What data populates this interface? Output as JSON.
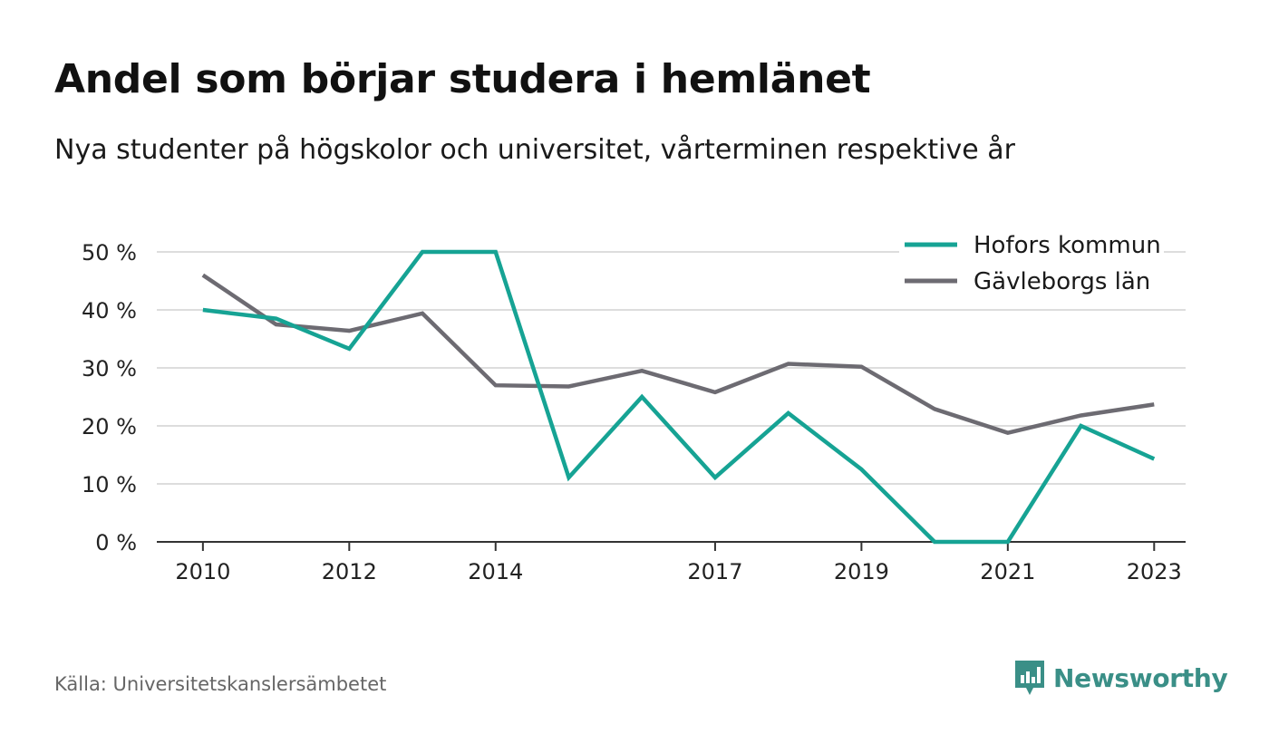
{
  "header": {
    "title": "Andel som börjar studera i hemlänet",
    "subtitle": "Nya studenter på högskolor och universitet, vårterminen respektive år"
  },
  "footer": {
    "source": "Källa: Universitetskanslersämbetet",
    "brand": "Newsworthy"
  },
  "colors": {
    "Hofors kommun": "#16a394",
    "Gävleborgs län": "#6d6b72",
    "grid": "#dddddd",
    "axis": "#333333",
    "brand": "#3a8f87"
  },
  "icons": {
    "brand_logo": "newsworthy-logo-icon"
  },
  "chart_data": {
    "type": "line",
    "title": "Andel som börjar studera i hemlänet",
    "subtitle": "Nya studenter på högskolor och universitet, vårterminen respektive år",
    "xlabel": "",
    "ylabel": "",
    "x": [
      2010,
      2011,
      2012,
      2013,
      2014,
      2015,
      2016,
      2017,
      2018,
      2019,
      2020,
      2021,
      2022,
      2023
    ],
    "x_tick_labels": [
      "2010",
      "2012",
      "2014",
      "2017",
      "2019",
      "2021",
      "2023"
    ],
    "x_ticks": [
      2010,
      2012,
      2014,
      2017,
      2019,
      2021,
      2023
    ],
    "y_ticks": [
      0,
      10,
      20,
      30,
      40,
      50
    ],
    "y_tick_labels": [
      "0 %",
      "10 %",
      "20 %",
      "30 %",
      "40 %",
      "50 %"
    ],
    "ylim": [
      0,
      50
    ],
    "grid": true,
    "legend_position": "top-right",
    "series": [
      {
        "name": "Hofors kommun",
        "values": [
          40,
          38.5,
          33.3,
          50,
          50,
          11.1,
          25,
          11.1,
          22.2,
          12.5,
          0,
          0,
          20,
          14.3
        ]
      },
      {
        "name": "Gävleborgs län",
        "values": [
          46,
          37.5,
          36.4,
          39.4,
          27,
          26.8,
          29.5,
          25.8,
          30.7,
          30.2,
          22.9,
          18.8,
          21.8,
          23.7
        ]
      }
    ]
  }
}
